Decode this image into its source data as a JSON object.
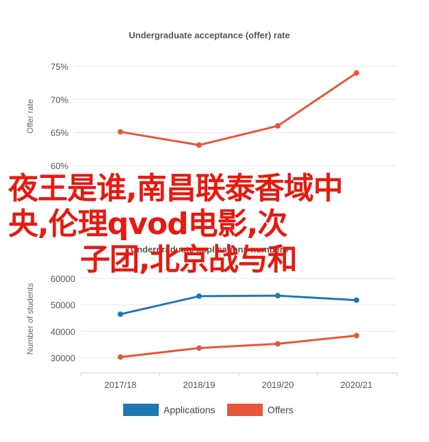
{
  "chart_data": [
    {
      "type": "line",
      "title": "Undergraduate acceptance (offer) rate",
      "ylabel": "Offer rate",
      "ylim": [
        0.58,
        0.77
      ],
      "yticks": [
        "60%",
        "65%",
        "70%",
        "75%"
      ],
      "ytick_values": [
        0.6,
        0.65,
        0.7,
        0.75
      ],
      "categories": [
        "2017/18",
        "2018/19",
        "2019/20",
        "2020/21"
      ],
      "series": [
        {
          "values": [
            0.651,
            0.631,
            0.66,
            0.74
          ],
          "color": "#e8553a"
        }
      ],
      "grid": true
    },
    {
      "type": "line",
      "title": "Undergraduate applications numbers",
      "ylabel": "Number of students",
      "ylim": [
        25000,
        66000
      ],
      "yticks": [
        "30000",
        "40000",
        "50000",
        "60000"
      ],
      "ytick_values": [
        30000,
        40000,
        50000,
        60000
      ],
      "categories": [
        "2017/18",
        "2018/19",
        "2019/20",
        "2020/21"
      ],
      "series": [
        {
          "name": "Applications",
          "values": [
            46500,
            53300,
            53500,
            51800
          ],
          "color": "#1f77b4"
        },
        {
          "name": "Offers",
          "values": [
            30300,
            33700,
            35300,
            38400
          ],
          "color": "#e8553a"
        }
      ],
      "legend": "bottom",
      "grid": true
    }
  ],
  "overlay": {
    "line1": "夜王是谁,南昌联泰香域中",
    "line2": "央,伦理qvod电影,次",
    "line3": "子团,北京战与和"
  }
}
